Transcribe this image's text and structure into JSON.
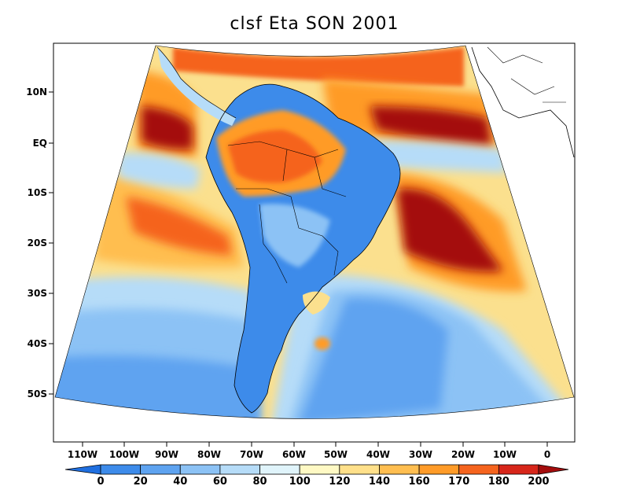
{
  "title": "clsf Eta SON 2001",
  "lat_labels": [
    "10N",
    "EQ",
    "10S",
    "20S",
    "30S",
    "40S",
    "50S"
  ],
  "lon_labels": [
    "110W",
    "100W",
    "90W",
    "80W",
    "70W",
    "60W",
    "50W",
    "40W",
    "30W",
    "20W",
    "10W",
    "0"
  ],
  "colorbar": {
    "ticks": [
      "0",
      "20",
      "40",
      "60",
      "80",
      "100",
      "120",
      "140",
      "160",
      "170",
      "180",
      "200"
    ],
    "colors": [
      "#1f6fe0",
      "#3d8bea",
      "#5ea3f0",
      "#8cc2f5",
      "#b6dcf8",
      "#e0f4fb",
      "#fff9c4",
      "#ffe08a",
      "#ffbe50",
      "#ff9b28",
      "#f5641e",
      "#d7261a",
      "#a40d0d"
    ]
  },
  "map_colors": {
    "ocean_base": "#fbe08e",
    "land": "#3d8bea",
    "blue_light": "#b6dcf8",
    "blue_mid": "#8cc2f5",
    "blue_strong": "#5ea3f0",
    "orange": "#ffbe50",
    "orange_dark": "#ff9b28",
    "red": "#f5641e",
    "red_dark": "#a40d0d"
  }
}
